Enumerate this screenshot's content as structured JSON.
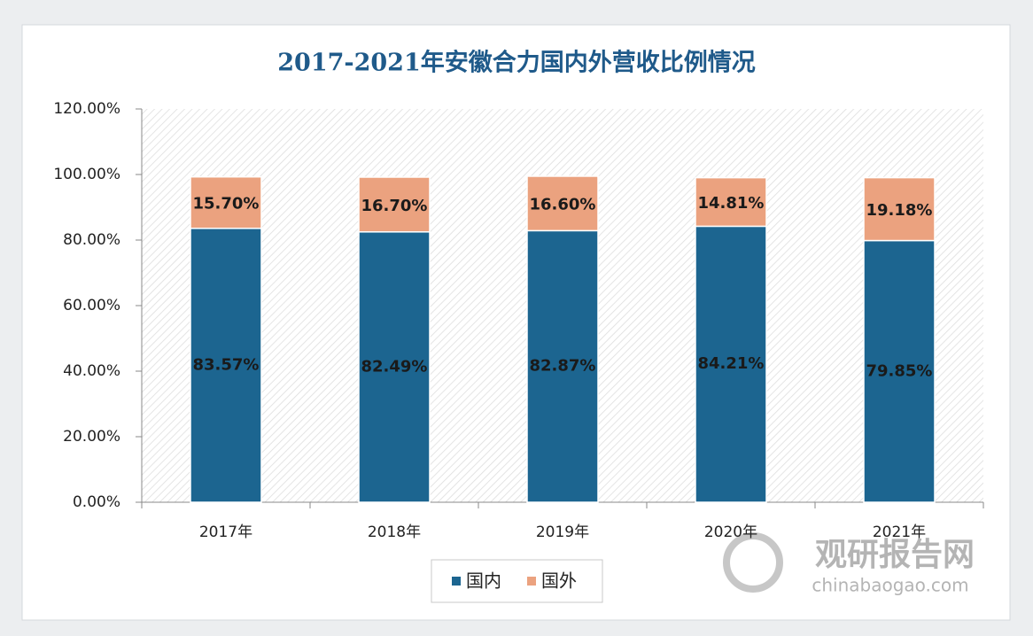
{
  "chart_data": {
    "type": "stacked-bar",
    "title": "2017-2021年安徽合力国内外营收比例情况",
    "categories": [
      "2017年",
      "2018年",
      "2019年",
      "2020年",
      "2021年"
    ],
    "series": [
      {
        "name": "国内",
        "color": "#1c6590",
        "values": [
          83.57,
          82.49,
          82.87,
          84.21,
          79.85
        ],
        "value_labels": [
          "83.57%",
          "82.49%",
          "82.87%",
          "84.21%",
          "79.85%"
        ]
      },
      {
        "name": "国外",
        "color": "#eba27f",
        "values": [
          15.7,
          16.7,
          16.6,
          14.81,
          19.18
        ],
        "value_labels": [
          "15.70%",
          "16.70%",
          "16.60%",
          "14.81%",
          "19.18%"
        ]
      }
    ],
    "ylim": [
      0,
      120
    ],
    "yticks": [
      {
        "value": 0,
        "label": "0.00%"
      },
      {
        "value": 20,
        "label": "20.00%"
      },
      {
        "value": 40,
        "label": "40.00%"
      },
      {
        "value": 60,
        "label": "60.00%"
      },
      {
        "value": 80,
        "label": "80.00%"
      },
      {
        "value": 100,
        "label": "100.00%"
      },
      {
        "value": 120,
        "label": "120.00%"
      }
    ],
    "legend": "bottom",
    "watermark": {
      "name": "观研报告网",
      "url": "chinabaogao.com"
    }
  }
}
